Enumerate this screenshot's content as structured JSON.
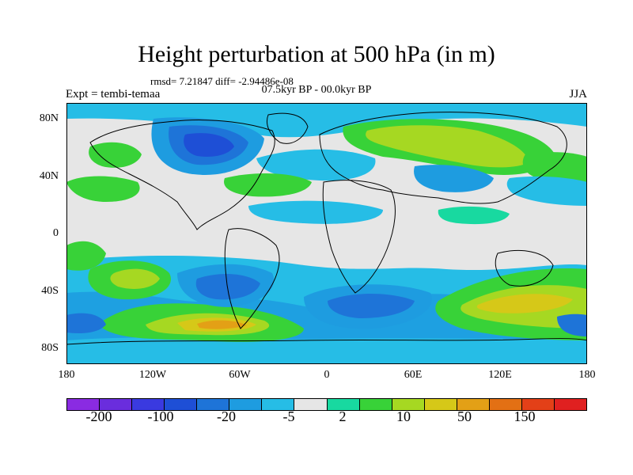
{
  "title": "Height perturbation at 500 hPa (in m)",
  "stats_line": "rmsd= 7.21847 diff= -2.94486e-08",
  "period_line": "07.5kyr BP - 00.0kyr BP",
  "left_label": "Expt = tembi-temaa",
  "right_label": "JJA",
  "y_axis_labels": [
    "80N",
    "40N",
    "0",
    "40S",
    "80S"
  ],
  "x_axis_labels": [
    "180",
    "120W",
    "60W",
    "0",
    "60E",
    "120E",
    "180"
  ],
  "colorbar": {
    "colors": [
      "#8a2be2",
      "#6a2ddd",
      "#3a3ae0",
      "#1e4fd6",
      "#1e74d8",
      "#1e9ce0",
      "#26bde6",
      "#e6e6e6",
      "#18d9a0",
      "#38d238",
      "#a6d822",
      "#d6c818",
      "#e3a016",
      "#e37014",
      "#e34018",
      "#e02020"
    ],
    "labels": [
      "-200",
      "-100",
      "-20",
      "-5",
      "2",
      "10",
      "50",
      "150"
    ]
  },
  "palette": {
    "background": "#e6e6e6",
    "lightblue": "#26bde6",
    "midblue": "#1e9ce0",
    "blue": "#1e74d8",
    "darkblue": "#1e4fd6",
    "teal": "#18d9a0",
    "green": "#38d238",
    "yellowgreen": "#a6d822",
    "yellow": "#d6c818",
    "orange": "#e3a016"
  }
}
